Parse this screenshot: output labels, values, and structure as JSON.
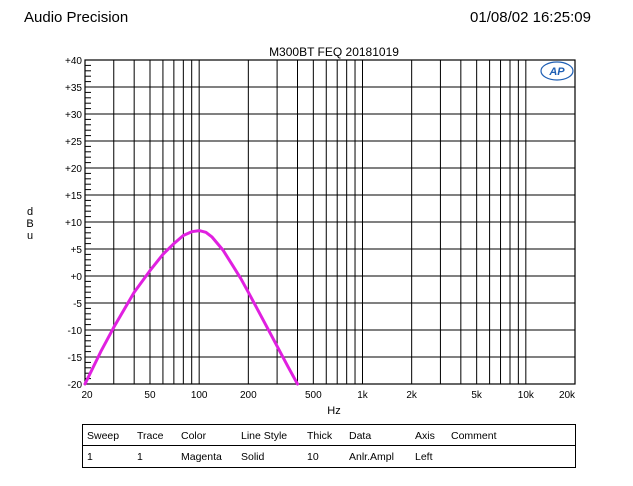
{
  "header": {
    "brand": "Audio Precision",
    "datetime": "01/08/02 16:25:09"
  },
  "logo": {
    "text": "AP"
  },
  "chart_data": {
    "type": "line",
    "title": "M300BT  FEQ  20181019",
    "xlabel": "Hz",
    "ylabel": "dBu",
    "x_scale": "log",
    "xlim": [
      20,
      20000
    ],
    "ylim": [
      -20,
      40
    ],
    "grid": true,
    "x_ticks": [
      {
        "value": 20,
        "label": "20"
      },
      {
        "value": 50,
        "label": "50"
      },
      {
        "value": 100,
        "label": "100"
      },
      {
        "value": 200,
        "label": "200"
      },
      {
        "value": 500,
        "label": "500"
      },
      {
        "value": 1000,
        "label": "1k"
      },
      {
        "value": 2000,
        "label": "2k"
      },
      {
        "value": 5000,
        "label": "5k"
      },
      {
        "value": 10000,
        "label": "10k"
      },
      {
        "value": 20000,
        "label": "20k"
      }
    ],
    "y_ticks": [
      {
        "value": 40,
        "label": "+40"
      },
      {
        "value": 35,
        "label": "+35"
      },
      {
        "value": 30,
        "label": "+30"
      },
      {
        "value": 25,
        "label": "+25"
      },
      {
        "value": 20,
        "label": "+20"
      },
      {
        "value": 15,
        "label": "+15"
      },
      {
        "value": 10,
        "label": "+10"
      },
      {
        "value": 5,
        "label": "+5"
      },
      {
        "value": 0,
        "label": "+0"
      },
      {
        "value": -5,
        "label": "-5"
      },
      {
        "value": -10,
        "label": "-10"
      },
      {
        "value": -15,
        "label": "-15"
      },
      {
        "value": -20,
        "label": "-20"
      }
    ],
    "series": [
      {
        "color": "#e020e0",
        "x": [
          20,
          25,
          30,
          40,
          50,
          60,
          70,
          80,
          90,
          100,
          110,
          120,
          140,
          160,
          180,
          200,
          250,
          300,
          350,
          400
        ],
        "y": [
          -20,
          -14,
          -9.5,
          -3,
          1,
          4,
          6,
          7.5,
          8.2,
          8.4,
          8.1,
          7.2,
          4.8,
          2,
          -0.5,
          -3,
          -8.5,
          -13,
          -16.8,
          -20
        ]
      }
    ]
  },
  "legend_table": {
    "headers": [
      "Sweep",
      "Trace",
      "Color",
      "Line Style",
      "Thick",
      "Data",
      "Axis",
      "Comment"
    ],
    "rows": [
      [
        "1",
        "1",
        "Magenta",
        "Solid",
        "10",
        "Anlr.Ampl",
        "Left",
        ""
      ]
    ]
  }
}
